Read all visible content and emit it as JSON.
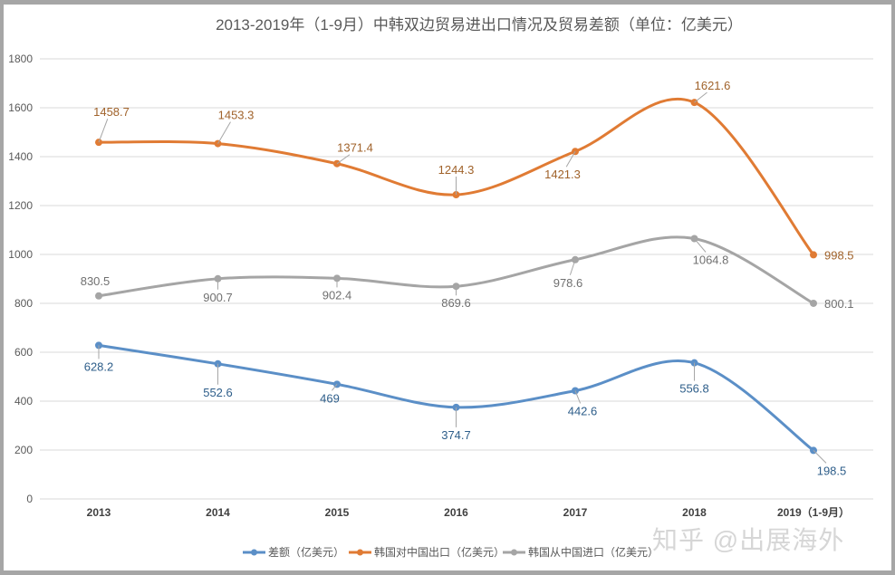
{
  "chart_data": {
    "type": "line",
    "title": "2013-2019年（1-9月）中韩双边贸易进出口情况及贸易差额（单位：亿美元）",
    "xlabel": "",
    "ylabel": "",
    "categories": [
      "2013",
      "2014",
      "2015",
      "2016",
      "2017",
      "2018",
      "2019（1-9月）"
    ],
    "ylim": [
      0,
      1800
    ],
    "yticks": [
      0,
      200,
      400,
      600,
      800,
      1000,
      1200,
      1400,
      1600,
      1800
    ],
    "grid": true,
    "smooth": true,
    "legend_position": "bottom",
    "series": [
      {
        "name": "差额（亿美元）",
        "color": "#5b8fc7",
        "label_color": "#2e5e8a",
        "values": [
          628.2,
          552.6,
          469,
          374.7,
          442.6,
          556.8,
          198.5
        ],
        "labels": [
          "628.2",
          "552.6",
          "469",
          "374.7",
          "442.6",
          "556.8",
          "198.5"
        ]
      },
      {
        "name": "韩国对中国出口（亿美元）",
        "color": "#e07b34",
        "label_color": "#a0622a",
        "values": [
          1458.7,
          1453.3,
          1371.4,
          1244.3,
          1421.3,
          1621.6,
          998.5
        ],
        "labels": [
          "1458.7",
          "1453.3",
          "1371.4",
          "1244.3",
          "1421.3",
          "1621.6",
          "998.5"
        ]
      },
      {
        "name": "韩国从中国进口（亿美元）",
        "color": "#a5a5a5",
        "label_color": "#707070",
        "values": [
          830.5,
          900.7,
          902.4,
          869.6,
          978.6,
          1064.8,
          800.1
        ],
        "labels": [
          "830.5",
          "900.7",
          "902.4",
          "869.6",
          "978.6",
          "1064.8",
          "800.1"
        ]
      }
    ]
  },
  "watermark": "知乎 @出展海外"
}
